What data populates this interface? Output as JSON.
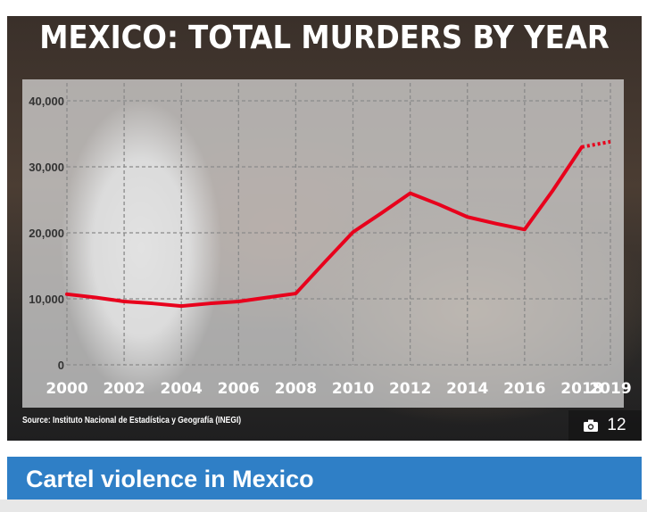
{
  "header": {
    "title": "MEXICO: TOTAL MURDERS BY YEAR"
  },
  "source_note": "Source: Instituto Nacional de Estadística y Geografía (INEGI)",
  "gallery": {
    "icon": "camera-icon",
    "count": "12"
  },
  "caption": {
    "text": "Cartel violence in Mexico"
  },
  "colors": {
    "line": "#e8001c",
    "caption_bg": "#2f7fc6",
    "plot_overlay": "#d9d9d9"
  },
  "chart_data": {
    "type": "line",
    "title": "MEXICO: TOTAL MURDERS BY YEAR",
    "xlabel": "",
    "ylabel": "",
    "x": [
      2000,
      2001,
      2002,
      2003,
      2004,
      2005,
      2006,
      2007,
      2008,
      2009,
      2010,
      2011,
      2012,
      2013,
      2014,
      2015,
      2016,
      2017,
      2018,
      2019
    ],
    "series": [
      {
        "values": [
          10700,
          10200,
          9600,
          9300,
          8900,
          9300,
          9600,
          10200,
          10800,
          15500,
          20100,
          23000,
          26000,
          24300,
          22400,
          21400,
          20500,
          26500,
          33000,
          33800
        ],
        "style": "solid",
        "projected_from_index": 18
      }
    ],
    "xticks": [
      "2000",
      "2002",
      "2004",
      "2006",
      "2008",
      "2010",
      "2012",
      "2014",
      "2016",
      "2018",
      "2019"
    ],
    "yticks": [
      "0",
      "10,000",
      "20,000",
      "30,000",
      "40,000"
    ],
    "ylim": [
      0,
      40000
    ],
    "xlim": [
      2000,
      2019
    ],
    "grid": true,
    "legend": "none"
  }
}
